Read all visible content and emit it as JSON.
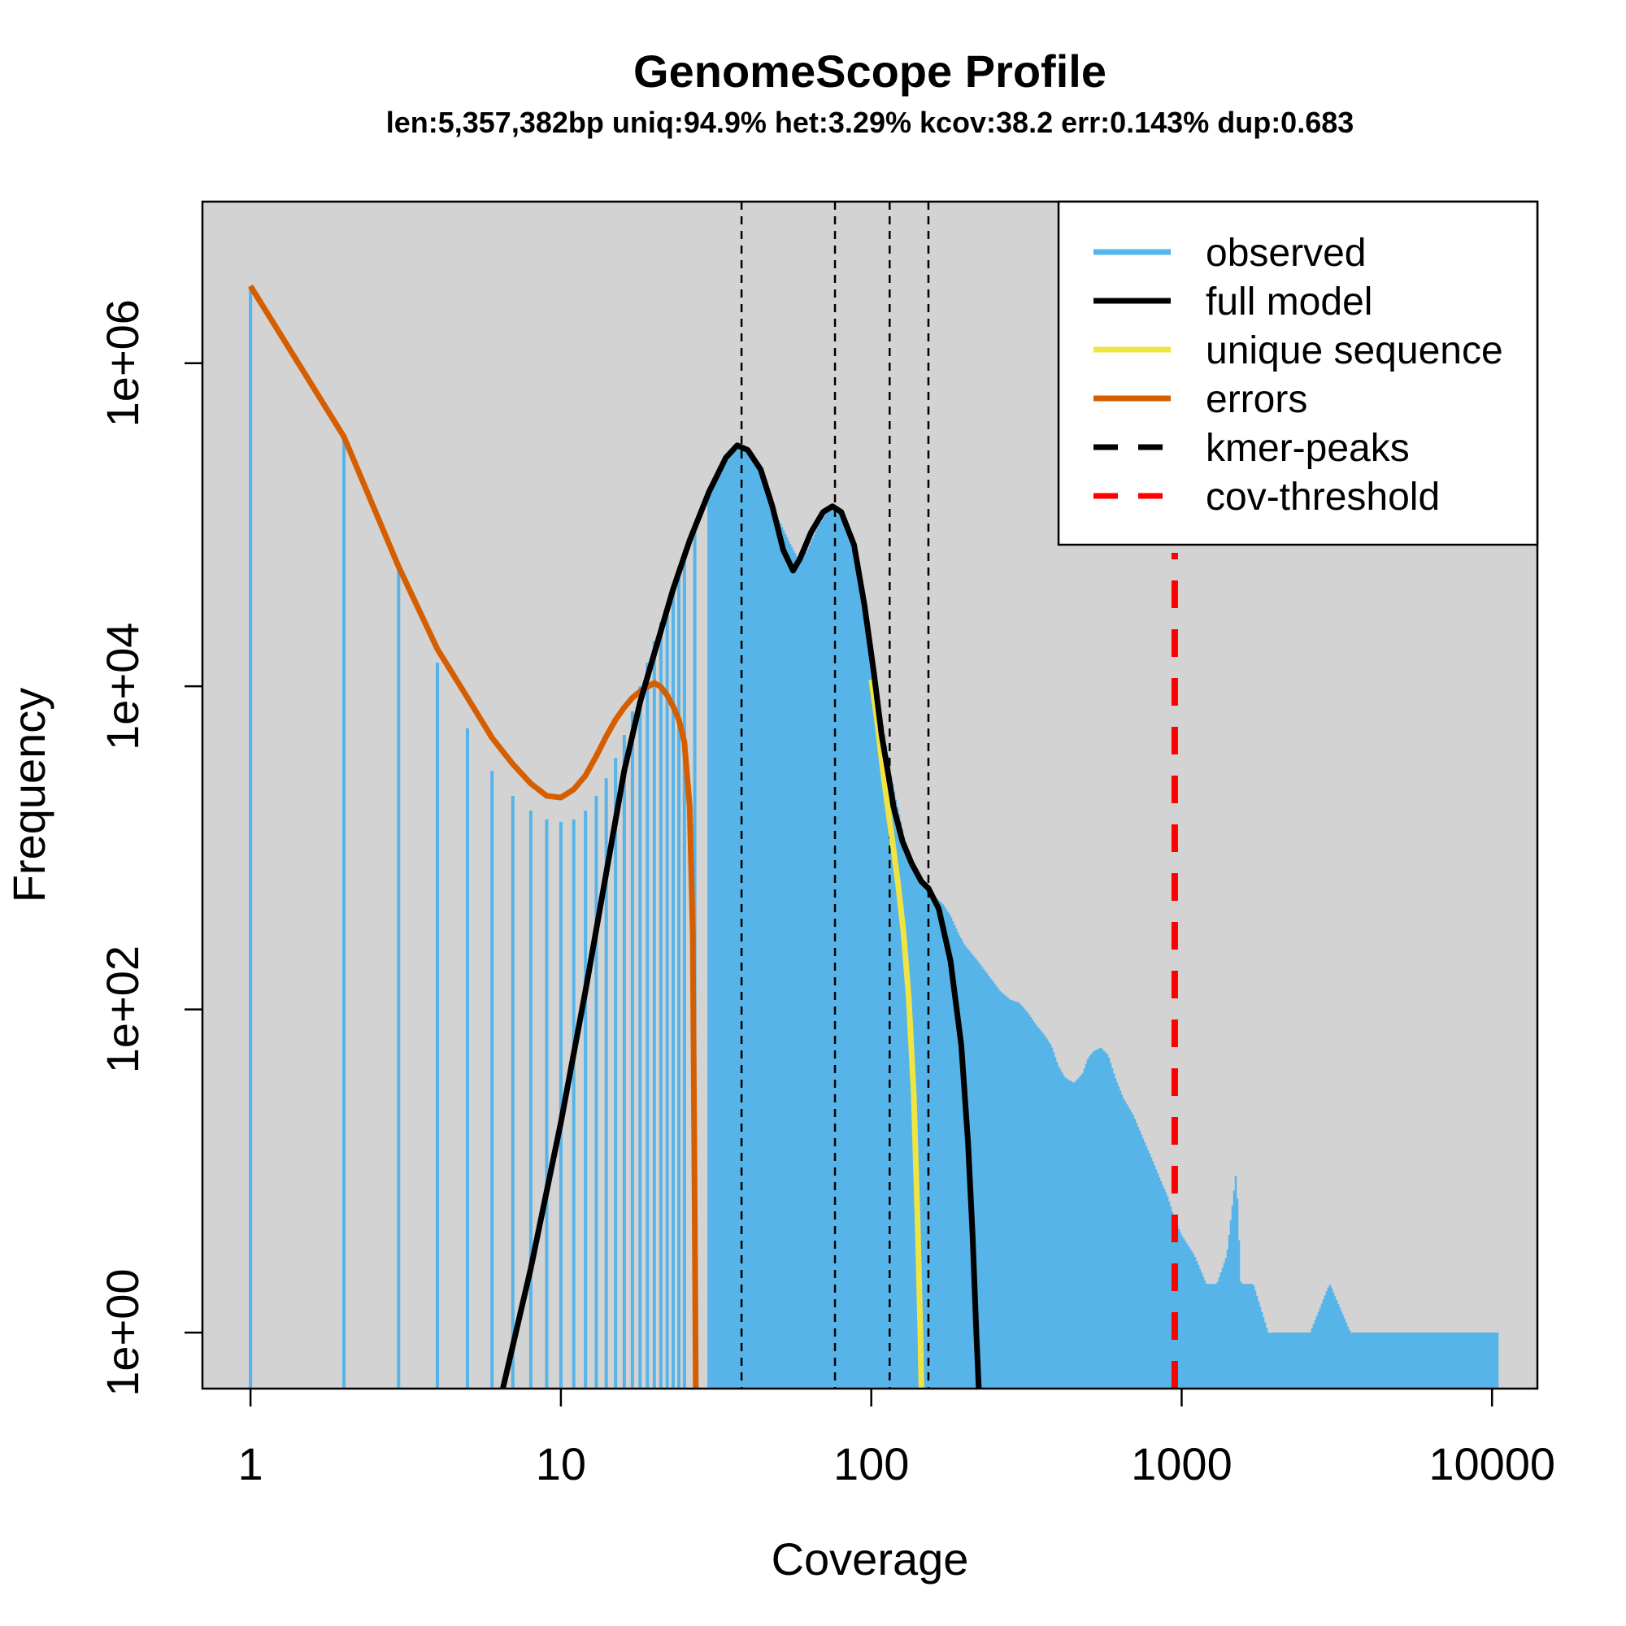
{
  "chart_data": {
    "type": "line",
    "title": "GenomeScope Profile",
    "subtitle": "len:5,357,382bp uniq:94.9% het:3.29% kcov:38.2 err:0.143% dup:0.683",
    "xlabel": "Coverage",
    "ylabel": "Frequency",
    "x_scale": "log10",
    "y_scale": "log10",
    "xlim": [
      0.7,
      14000
    ],
    "ylim": [
      0.45,
      10000000
    ],
    "x_ticks": [
      1,
      10,
      100,
      1000,
      10000
    ],
    "x_tick_labels": [
      "1",
      "10",
      "100",
      "1000",
      "10000"
    ],
    "y_ticks": [
      1,
      100,
      10000,
      1000000
    ],
    "y_tick_labels": [
      "1e+00",
      "1e+02",
      "1e+04",
      "1e+06"
    ],
    "grid": false,
    "background": "#d3d3d3",
    "legend_position": "top-right",
    "legend": [
      {
        "label": "observed",
        "color": "#56b4e9",
        "style": "solid"
      },
      {
        "label": "full model",
        "color": "#000000",
        "style": "solid"
      },
      {
        "label": "unique sequence",
        "color": "#f0e442",
        "style": "solid"
      },
      {
        "label": "errors",
        "color": "#d55e00",
        "style": "solid"
      },
      {
        "label": "kmer-peaks",
        "color": "#000000",
        "style": "dashed"
      },
      {
        "label": "cov-threshold",
        "color": "#ff0000",
        "style": "dashed"
      }
    ],
    "series": [
      {
        "name": "observed",
        "kind": "histogram",
        "color": "#56b4e9",
        "points": [
          [
            1,
            3000000
          ],
          [
            2,
            350000
          ],
          [
            3,
            55000
          ],
          [
            4,
            14000
          ],
          [
            5,
            5500
          ],
          [
            6,
            3000
          ],
          [
            7,
            2100
          ],
          [
            8,
            1700
          ],
          [
            9,
            1500
          ],
          [
            10,
            1450
          ],
          [
            11,
            1500
          ],
          [
            12,
            1700
          ],
          [
            13,
            2100
          ],
          [
            14,
            2700
          ],
          [
            15,
            3600
          ],
          [
            16,
            5000
          ],
          [
            17,
            7000
          ],
          [
            18,
            10000
          ],
          [
            19,
            14000
          ],
          [
            20,
            19000
          ],
          [
            21,
            25000
          ],
          [
            22,
            32000
          ],
          [
            23,
            42000
          ],
          [
            24,
            55000
          ],
          [
            25,
            70000
          ],
          [
            27,
            100000
          ],
          [
            30,
            150000
          ],
          [
            33,
            220000
          ],
          [
            36,
            280000
          ],
          [
            38,
            300000
          ],
          [
            42,
            250000
          ],
          [
            46,
            170000
          ],
          [
            50,
            110000
          ],
          [
            55,
            75000
          ],
          [
            58,
            62000
          ],
          [
            62,
            68000
          ],
          [
            67,
            95000
          ],
          [
            72,
            120000
          ],
          [
            76,
            130000
          ],
          [
            80,
            115000
          ],
          [
            88,
            65000
          ],
          [
            95,
            30000
          ],
          [
            100,
            16000
          ],
          [
            105,
            9000
          ],
          [
            110,
            5200
          ],
          [
            115,
            3000
          ],
          [
            120,
            2000
          ],
          [
            125,
            1400
          ],
          [
            130,
            1000
          ],
          [
            140,
            700
          ],
          [
            150,
            550
          ],
          [
            160,
            500
          ],
          [
            170,
            450
          ],
          [
            180,
            380
          ],
          [
            190,
            300
          ],
          [
            200,
            250
          ],
          [
            220,
            200
          ],
          [
            240,
            160
          ],
          [
            260,
            130
          ],
          [
            280,
            115
          ],
          [
            300,
            110
          ],
          [
            320,
            95
          ],
          [
            340,
            80
          ],
          [
            360,
            70
          ],
          [
            380,
            60
          ],
          [
            400,
            45
          ],
          [
            420,
            38
          ],
          [
            450,
            35
          ],
          [
            480,
            40
          ],
          [
            500,
            50
          ],
          [
            520,
            55
          ],
          [
            550,
            58
          ],
          [
            580,
            52
          ],
          [
            610,
            38
          ],
          [
            650,
            28
          ],
          [
            700,
            22
          ],
          [
            750,
            16
          ],
          [
            800,
            12
          ],
          [
            850,
            9
          ],
          [
            900,
            7
          ],
          [
            950,
            5
          ],
          [
            1000,
            4
          ],
          [
            1100,
            3
          ],
          [
            1200,
            2
          ],
          [
            1300,
            2
          ],
          [
            1400,
            3
          ],
          [
            1500,
            10
          ],
          [
            1550,
            2
          ],
          [
            1700,
            2
          ],
          [
            1900,
            1
          ],
          [
            2200,
            1
          ],
          [
            2600,
            1
          ],
          [
            3000,
            2
          ],
          [
            3500,
            1
          ],
          [
            4500,
            1
          ],
          [
            6000,
            1
          ],
          [
            8000,
            1
          ],
          [
            10500,
            1
          ]
        ]
      },
      {
        "name": "full model",
        "color": "#000000",
        "points": [
          [
            6.5,
            0.45
          ],
          [
            8,
            2.5
          ],
          [
            10,
            20
          ],
          [
            12,
            130
          ],
          [
            14,
            700
          ],
          [
            16,
            3000
          ],
          [
            18,
            8000
          ],
          [
            20,
            16000
          ],
          [
            23,
            40000
          ],
          [
            26,
            80000
          ],
          [
            30,
            160000
          ],
          [
            34,
            260000
          ],
          [
            37,
            310000
          ],
          [
            40,
            290000
          ],
          [
            44,
            220000
          ],
          [
            48,
            130000
          ],
          [
            52,
            70000
          ],
          [
            56,
            52000
          ],
          [
            59,
            62000
          ],
          [
            64,
            90000
          ],
          [
            70,
            120000
          ],
          [
            75,
            130000
          ],
          [
            80,
            120000
          ],
          [
            88,
            75000
          ],
          [
            95,
            32000
          ],
          [
            102,
            12000
          ],
          [
            108,
            5000
          ],
          [
            113,
            3000
          ],
          [
            118,
            1800
          ],
          [
            126,
            1100
          ],
          [
            135,
            800
          ],
          [
            145,
            620
          ],
          [
            153,
            560
          ],
          [
            165,
            420
          ],
          [
            180,
            200
          ],
          [
            195,
            60
          ],
          [
            205,
            15
          ],
          [
            212,
            4
          ],
          [
            218,
            1
          ],
          [
            222,
            0.45
          ]
        ]
      },
      {
        "name": "unique sequence",
        "color": "#f0e442",
        "points": [
          [
            100,
            11000
          ],
          [
            104,
            6500
          ],
          [
            108,
            3500
          ],
          [
            112,
            2000
          ],
          [
            117,
            1100
          ],
          [
            122,
            600
          ],
          [
            127,
            300
          ],
          [
            132,
            120
          ],
          [
            137,
            30
          ],
          [
            141,
            5
          ],
          [
            144,
            1
          ],
          [
            145,
            0.45
          ]
        ]
      },
      {
        "name": "errors",
        "color": "#d55e00",
        "points": [
          [
            1,
            3000000
          ],
          [
            2,
            350000
          ],
          [
            3,
            55000
          ],
          [
            4,
            17000
          ],
          [
            5,
            8500
          ],
          [
            6,
            4800
          ],
          [
            7,
            3300
          ],
          [
            8,
            2500
          ],
          [
            9,
            2100
          ],
          [
            10,
            2050
          ],
          [
            11,
            2300
          ],
          [
            12,
            2800
          ],
          [
            13,
            3700
          ],
          [
            14,
            4900
          ],
          [
            15,
            6200
          ],
          [
            16,
            7400
          ],
          [
            17,
            8500
          ],
          [
            18,
            9300
          ],
          [
            19,
            9900
          ],
          [
            20,
            10500
          ],
          [
            21,
            9900
          ],
          [
            22,
            8800
          ],
          [
            23,
            7500
          ],
          [
            24,
            6200
          ],
          [
            25,
            4500
          ],
          [
            26,
            1800
          ],
          [
            26.6,
            300
          ],
          [
            27,
            5
          ],
          [
            27.2,
            0.45
          ]
        ]
      }
    ],
    "kmer_peaks": [
      38.2,
      76.4,
      114.6,
      152.8
    ],
    "cov_threshold": 950
  }
}
